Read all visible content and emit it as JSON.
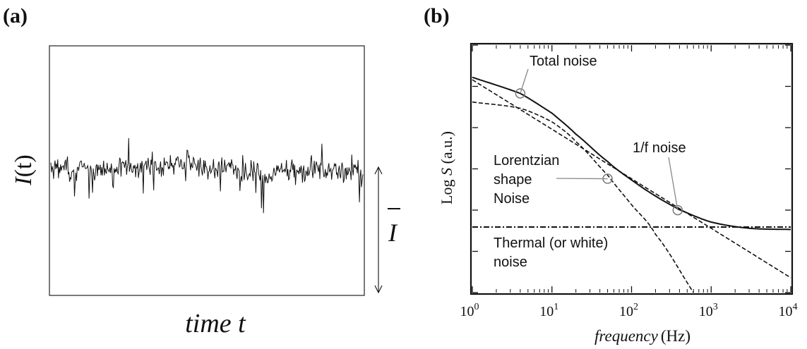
{
  "panels": {
    "a_label": "(a)",
    "b_label": "(b)"
  },
  "chart_data": [
    {
      "panel": "(a)",
      "type": "line",
      "ylabel": "I(t)",
      "ylabel_italic_part": "I",
      "ylabel_rest": "(t)",
      "xlabel": "time t",
      "mean_marker_label": "I",
      "mean_marker_overline": true,
      "ticks": false,
      "signal": {
        "baseline": 0.5,
        "relative_fluctuation": 0.06,
        "approx_points": 450,
        "description_visible": "noisy current trace fluctuating around a mean level"
      }
    },
    {
      "panel": "(b)",
      "type": "line",
      "xscale": "log",
      "xlabel": "frequency (Hz)",
      "xlabel_italic_part": "frequency",
      "xlabel_unit": "(Hz)",
      "ylabel": "Log S (a.u.)",
      "ylabel_parts": [
        "Log ",
        "S",
        " (a.u.)"
      ],
      "xlim": [
        1,
        10000
      ],
      "ylim": [
        0,
        10
      ],
      "x_tick_values": [
        1,
        10,
        100,
        1000,
        10000
      ],
      "x_tick_labels": [
        {
          "base": "10",
          "exp": "0"
        },
        {
          "base": "10",
          "exp": "1"
        },
        {
          "base": "10",
          "exp": "2"
        },
        {
          "base": "10",
          "exp": "3"
        },
        {
          "base": "10",
          "exp": "4"
        }
      ],
      "y_tick_count": 6,
      "grid": false,
      "series": [
        {
          "name": "Total noise",
          "style": "solid",
          "points": [
            [
              1,
              8.7
            ],
            [
              4,
              8.05
            ],
            [
              10,
              7.25
            ],
            [
              20,
              6.4
            ],
            [
              50,
              5.3
            ],
            [
              100,
              4.55
            ],
            [
              200,
              3.9
            ],
            [
              400,
              3.35
            ],
            [
              1000,
              2.85
            ],
            [
              3000,
              2.6
            ],
            [
              10000,
              2.55
            ]
          ]
        },
        {
          "name": "1/f noise",
          "style": "dashed",
          "points": [
            [
              1,
              8.6
            ],
            [
              10,
              6.6
            ],
            [
              100,
              4.6
            ],
            [
              1000,
              2.6
            ],
            [
              10000,
              0.6
            ]
          ]
        },
        {
          "name": "Lorentzian shape Noise",
          "style": "dashed",
          "points": [
            [
              1,
              7.7
            ],
            [
              4,
              7.45
            ],
            [
              10,
              6.9
            ],
            [
              20,
              6.1
            ],
            [
              50,
              4.75
            ],
            [
              100,
              3.55
            ],
            [
              200,
              2.35
            ],
            [
              600,
              0
            ]
          ]
        },
        {
          "name": "Thermal (or white) noise",
          "style": "dash-dot",
          "points": [
            [
              1,
              2.65
            ],
            [
              10000,
              2.65
            ]
          ]
        }
      ],
      "annotations": [
        {
          "text": "Total noise",
          "marker_x": 4,
          "marker_y": 8.05
        },
        {
          "text": "1/f noise",
          "marker_x": 380,
          "marker_y": 3.33
        },
        {
          "lines": [
            "Lorentzian",
            "shape",
            "Noise"
          ],
          "marker_x": 50,
          "marker_y": 4.6
        },
        {
          "lines": [
            "Thermal (or white)",
            "noise"
          ]
        }
      ]
    }
  ]
}
